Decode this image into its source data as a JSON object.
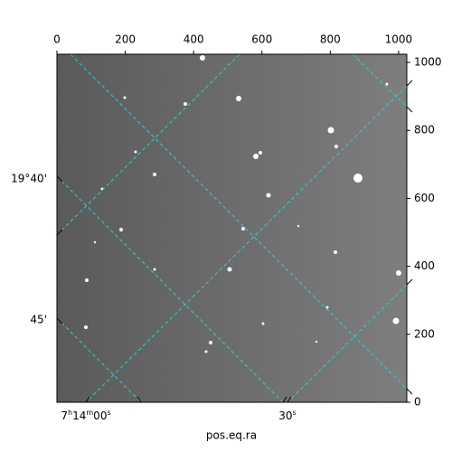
{
  "chart_data": {
    "type": "image",
    "xlabel": "pos.eq.ra",
    "xlim": [
      0,
      1024
    ],
    "xticks": [
      0,
      200,
      400,
      600,
      800,
      1000
    ],
    "ylim": [
      0,
      1024
    ],
    "yticks": [
      0,
      200,
      400,
      600,
      800,
      1000
    ],
    "ra_labels": [
      "7h14m00s",
      "30s"
    ],
    "dec_labels": [
      "19°40'",
      "45'"
    ]
  }
}
